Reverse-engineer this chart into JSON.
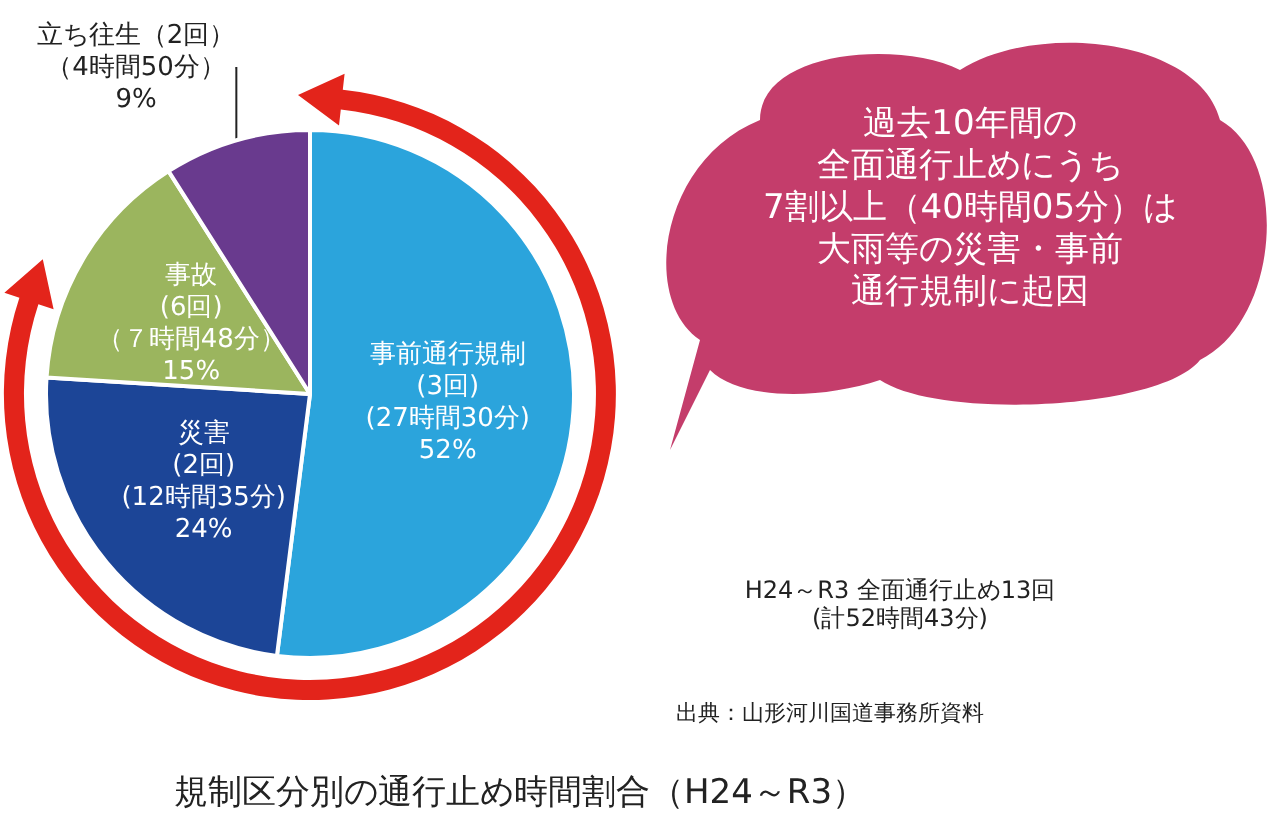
{
  "chart_data": {
    "type": "pie",
    "title": "規制区分別の通行止め時間割合（H24～R3）",
    "categories": [
      "事前通行規制\n(3回)\n(27時間30分)",
      "災害\n(2回)\n(12時間35分)",
      "事故\n(6回)\n（７時間48分）",
      "立ち往生（2回）（4時間50分）"
    ],
    "values": [
      52,
      24,
      15,
      9
    ],
    "value_labels": [
      "52%",
      "24%",
      "15%",
      "9%"
    ],
    "colors": [
      "#2ba4dc",
      "#1c4597",
      "#9bb55e",
      "#693a8e"
    ],
    "annotations": [
      "過去10年間の",
      "全面通行止めにうち",
      "7割以上（40時間05分）は",
      "大雨等の災害・事前",
      "通行規制に起因",
      "H24～R3 全面通行止め13回\n(計52時間43分)",
      "出典：山形河川国道事務所資料"
    ],
    "legend": false
  }
}
